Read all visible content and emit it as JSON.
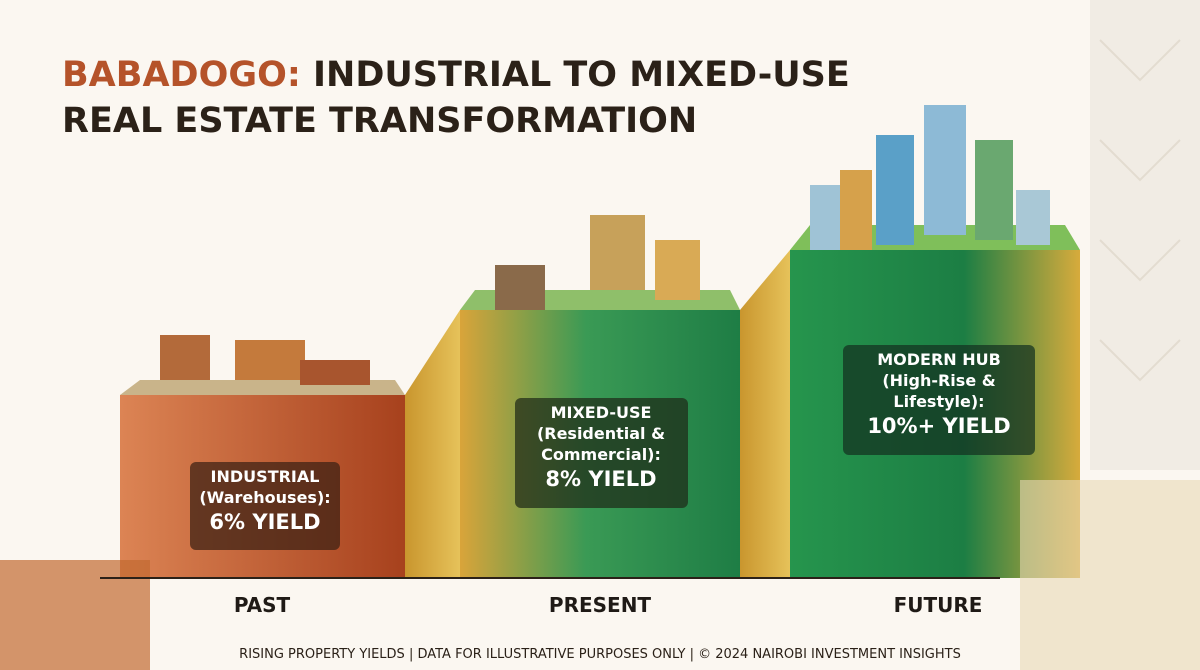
{
  "header": {
    "title_highlight": "BABADOGO:",
    "title_rest": "INDUSTRIAL TO MIXED-USE",
    "title_line2": "REAL ESTATE TRANSFORMATION"
  },
  "stages": [
    {
      "lines": [
        "INDUSTRIAL",
        "(Warehouses):"
      ],
      "yield": "6% YIELD",
      "era": "PAST"
    },
    {
      "lines": [
        "MIXED-USE",
        "(Residential &",
        "Commercial):"
      ],
      "yield": "8% YIELD",
      "era": "PRESENT"
    },
    {
      "lines": [
        "MODERN HUB",
        "(High-Rise &",
        "Lifestyle):"
      ],
      "yield": "10%+ YIELD",
      "era": "FUTURE"
    }
  ],
  "footer": "RISING PROPERTY YIELDS | DATA FOR ILLUSTRATIVE PURPOSES ONLY | © 2024 NAIROBI INVESTMENT INSIGHTS"
}
